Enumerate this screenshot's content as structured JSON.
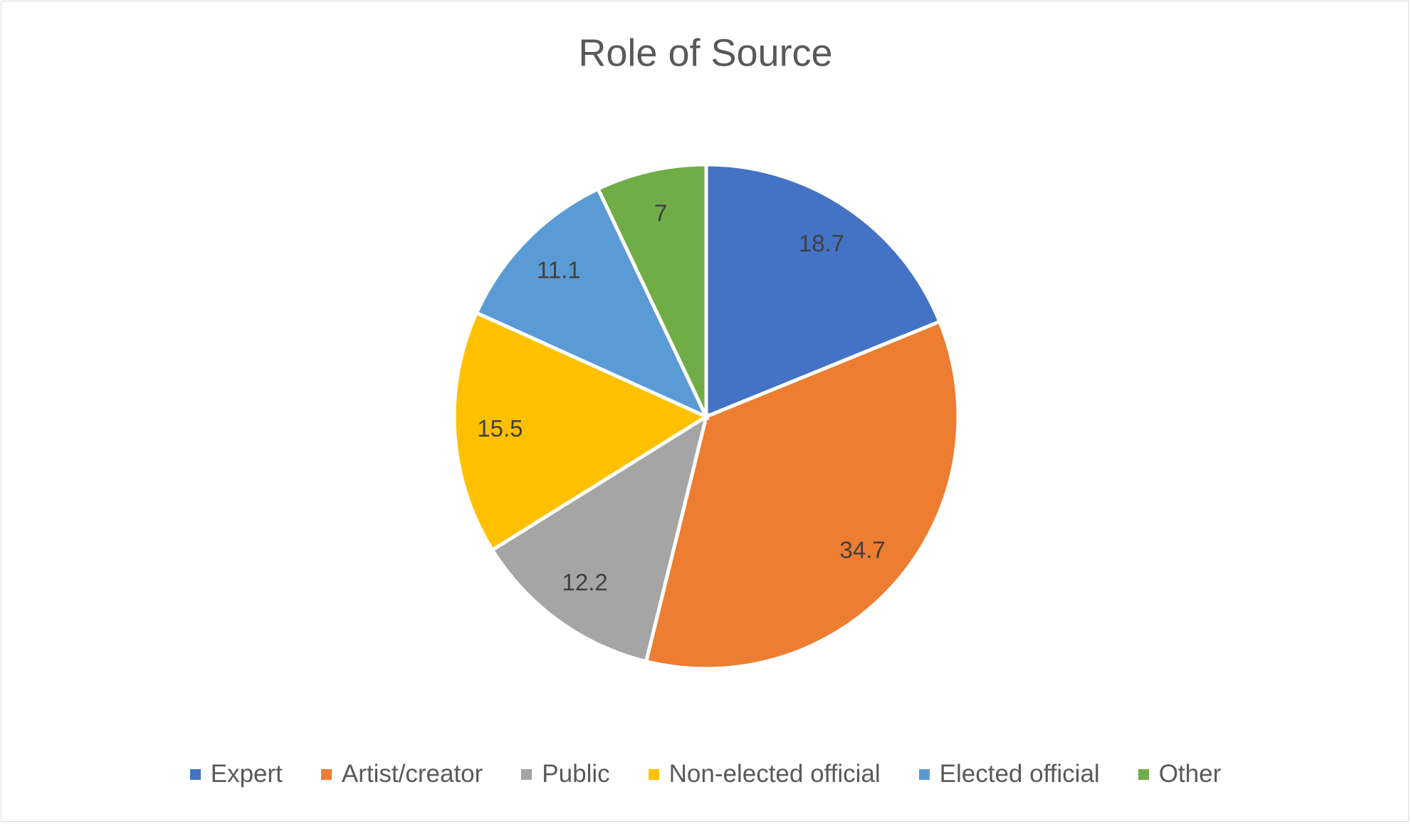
{
  "chart_data": {
    "type": "pie",
    "title": "Role of Source",
    "categories": [
      "Expert",
      "Artist/creator",
      "Public",
      "Non-elected official",
      "Elected official",
      "Other"
    ],
    "values": [
      18.7,
      34.7,
      12.2,
      15.5,
      11.1,
      7
    ],
    "colors": [
      "#4472c4",
      "#ed7d31",
      "#a5a5a5",
      "#ffc000",
      "#5b9bd5",
      "#70ad47"
    ],
    "legend": "bottom"
  }
}
